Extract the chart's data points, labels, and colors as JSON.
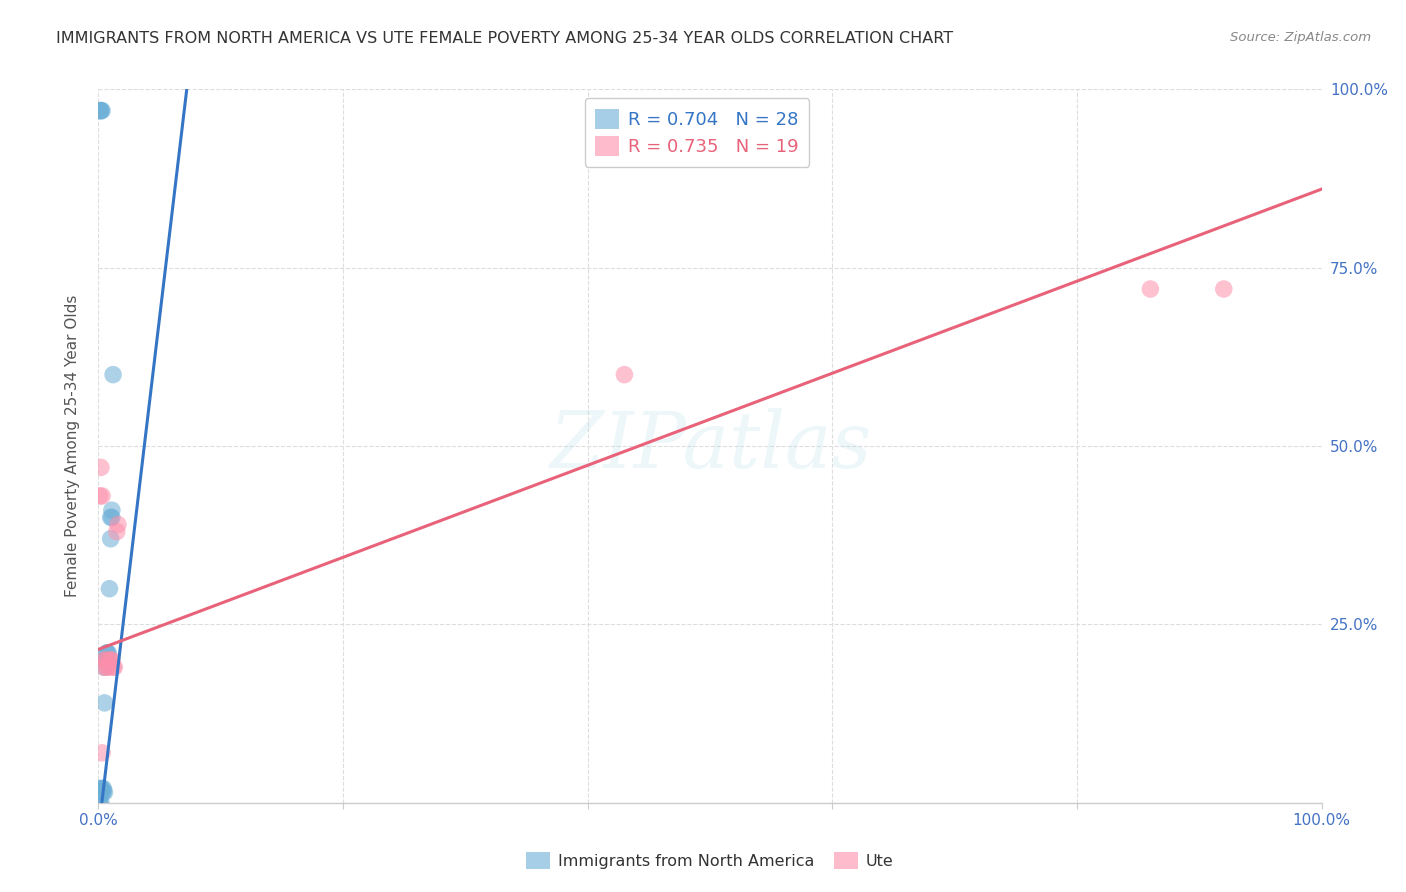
{
  "title": "IMMIGRANTS FROM NORTH AMERICA VS UTE FEMALE POVERTY AMONG 25-34 YEAR OLDS CORRELATION CHART",
  "source": "Source: ZipAtlas.com",
  "ylabel": "Female Poverty Among 25-34 Year Olds",
  "watermark": "ZIPatlas",
  "legend_blue_label": "Immigrants from North America",
  "legend_pink_label": "Ute",
  "legend_blue_r": "R = 0.704",
  "legend_blue_n": "N = 28",
  "legend_pink_r": "R = 0.735",
  "legend_pink_n": "N = 19",
  "blue_scatter": [
    [
      0.001,
      0.02
    ],
    [
      0.002,
      0.02
    ],
    [
      0.002,
      0.015
    ],
    [
      0.003,
      0.015
    ],
    [
      0.004,
      0.015
    ],
    [
      0.005,
      0.015
    ],
    [
      0.004,
      0.02
    ],
    [
      0.003,
      0.02
    ],
    [
      0.005,
      0.14
    ],
    [
      0.005,
      0.19
    ],
    [
      0.006,
      0.2
    ],
    [
      0.007,
      0.2
    ],
    [
      0.007,
      0.21
    ],
    [
      0.007,
      0.21
    ],
    [
      0.008,
      0.21
    ],
    [
      0.009,
      0.3
    ],
    [
      0.01,
      0.37
    ],
    [
      0.01,
      0.4
    ],
    [
      0.011,
      0.4
    ],
    [
      0.011,
      0.41
    ],
    [
      0.012,
      0.6
    ],
    [
      0.001,
      0.0
    ],
    [
      0.002,
      0.0
    ],
    [
      0.001,
      0.005
    ],
    [
      0.001,
      0.97
    ],
    [
      0.002,
      0.97
    ],
    [
      0.002,
      0.97
    ],
    [
      0.003,
      0.97
    ]
  ],
  "pink_scatter": [
    [
      0.001,
      0.43
    ],
    [
      0.002,
      0.47
    ],
    [
      0.003,
      0.43
    ],
    [
      0.003,
      0.07
    ],
    [
      0.004,
      0.19
    ],
    [
      0.005,
      0.2
    ],
    [
      0.006,
      0.2
    ],
    [
      0.007,
      0.19
    ],
    [
      0.008,
      0.19
    ],
    [
      0.009,
      0.2
    ],
    [
      0.01,
      0.2
    ],
    [
      0.011,
      0.2
    ],
    [
      0.012,
      0.19
    ],
    [
      0.013,
      0.19
    ],
    [
      0.015,
      0.38
    ],
    [
      0.016,
      0.39
    ],
    [
      0.43,
      0.6
    ],
    [
      0.86,
      0.72
    ],
    [
      0.92,
      0.72
    ]
  ],
  "blue_line_x": [
    0.0,
    0.075
  ],
  "blue_line_y": [
    -0.04,
    1.04
  ],
  "pink_line_x": [
    0.0,
    1.0
  ],
  "pink_line_y": [
    0.215,
    0.86
  ],
  "xlim": [
    0.0,
    1.0
  ],
  "ylim": [
    0.0,
    1.0
  ],
  "yticks": [
    0.0,
    0.25,
    0.5,
    0.75,
    1.0
  ],
  "ytick_labels": [
    "",
    "25.0%",
    "50.0%",
    "75.0%",
    "100.0%"
  ],
  "xticks": [
    0.0,
    0.2,
    0.4,
    0.6,
    0.8,
    1.0
  ],
  "xtick_labels": [
    "0.0%",
    "",
    "",
    "",
    "",
    "100.0%"
  ],
  "blue_color": "#6BAED6",
  "pink_color": "#FC8FAB",
  "blue_line_color": "#3575C5",
  "pink_line_color": "#E8627A",
  "grid_color": "#DDDDDD",
  "tick_color": "#4472C4",
  "title_color": "#333333",
  "source_color": "#888888"
}
